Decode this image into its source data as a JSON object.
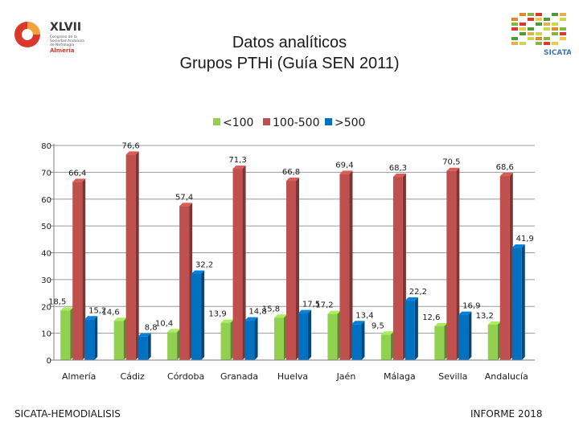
{
  "header": {
    "title_line1": "Datos analíticos",
    "title_line2": "Grupos PTHi (Guía SEN 2011)"
  },
  "logos": {
    "left_big": "XLVII",
    "left_sub1": "Congreso de la",
    "left_sub2": "Sociedad Andaluza",
    "left_sub3": "de Nefrología",
    "left_city": "Almería",
    "right_name": "SICATA"
  },
  "footer": {
    "left": "SICATA-HEMODIALISIS",
    "right": "INFORME 2018"
  },
  "colors": {
    "series1": "#92d050",
    "series2": "#c0504d",
    "series3": "#0070c0"
  },
  "chart_data": {
    "type": "bar",
    "title": "Datos analíticos Grupos PTHi (Guía SEN 2011)",
    "categories": [
      "Almería",
      "Cádiz",
      "Córdoba",
      "Granada",
      "Huelva",
      "Jaén",
      "Málaga",
      "Sevilla",
      "Andalucía"
    ],
    "series": [
      {
        "name": "<100",
        "values": [
          18.5,
          14.6,
          10.4,
          13.9,
          15.8,
          17.2,
          9.5,
          12.6,
          13.2
        ],
        "labels": [
          "18,5",
          "14,6",
          "10,4",
          "13,9",
          "15,8",
          "17,2",
          "9,5",
          "12,6",
          "13,2"
        ]
      },
      {
        "name": "100-500",
        "values": [
          66.4,
          76.6,
          57.4,
          71.3,
          66.8,
          69.4,
          68.3,
          70.5,
          68.6
        ],
        "labels": [
          "66,4",
          "76,6",
          "57,4",
          "71,3",
          "66,8",
          "69,4",
          "68,3",
          "70,5",
          "68,6"
        ]
      },
      {
        "name": ">500",
        "values": [
          15.2,
          8.8,
          32.2,
          14.8,
          17.5,
          13.4,
          22.2,
          16.9,
          41.9
        ],
        "labels": [
          "15,2",
          "8,8",
          "32,2",
          "14,8",
          "17,5",
          "13,4",
          "22,2",
          "16,9",
          "41,9"
        ]
      }
    ],
    "yticks": [
      0,
      10,
      20,
      30,
      40,
      50,
      60,
      70,
      80
    ],
    "ylim": [
      0,
      80
    ],
    "legend_position": "top-center",
    "xlabel": "",
    "ylabel": ""
  }
}
